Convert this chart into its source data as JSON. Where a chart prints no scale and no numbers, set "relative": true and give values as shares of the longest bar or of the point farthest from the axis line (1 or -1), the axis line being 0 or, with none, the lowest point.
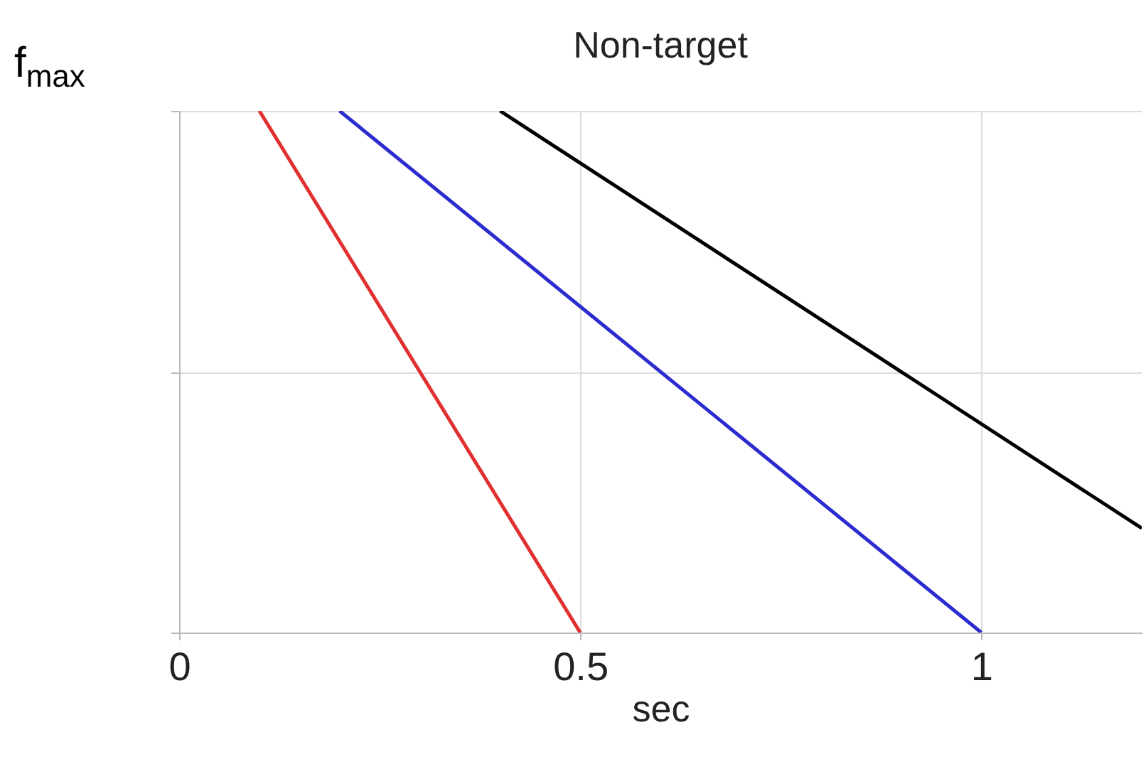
{
  "chart_data": {
    "type": "line",
    "title": "Non-target",
    "xlabel": "sec",
    "ylabel": "f$_{max}$",
    "relative": true,
    "xlim": [
      0,
      1.2
    ],
    "xticks": [
      0,
      0.5,
      1
    ],
    "grid": true,
    "marker": "none",
    "line_style": "solid",
    "series": [
      {
        "color": "#e03030",
        "x": [
          0.1,
          0.5
        ],
        "values": [
          1,
          0
        ]
      },
      {
        "color": "#2b2bd0",
        "x": [
          0.2,
          1
        ],
        "values": [
          1,
          0
        ]
      },
      {
        "color": "#000000",
        "x": [
          0.4,
          1.2
        ],
        "values": [
          1,
          0.2
        ]
      }
    ]
  }
}
